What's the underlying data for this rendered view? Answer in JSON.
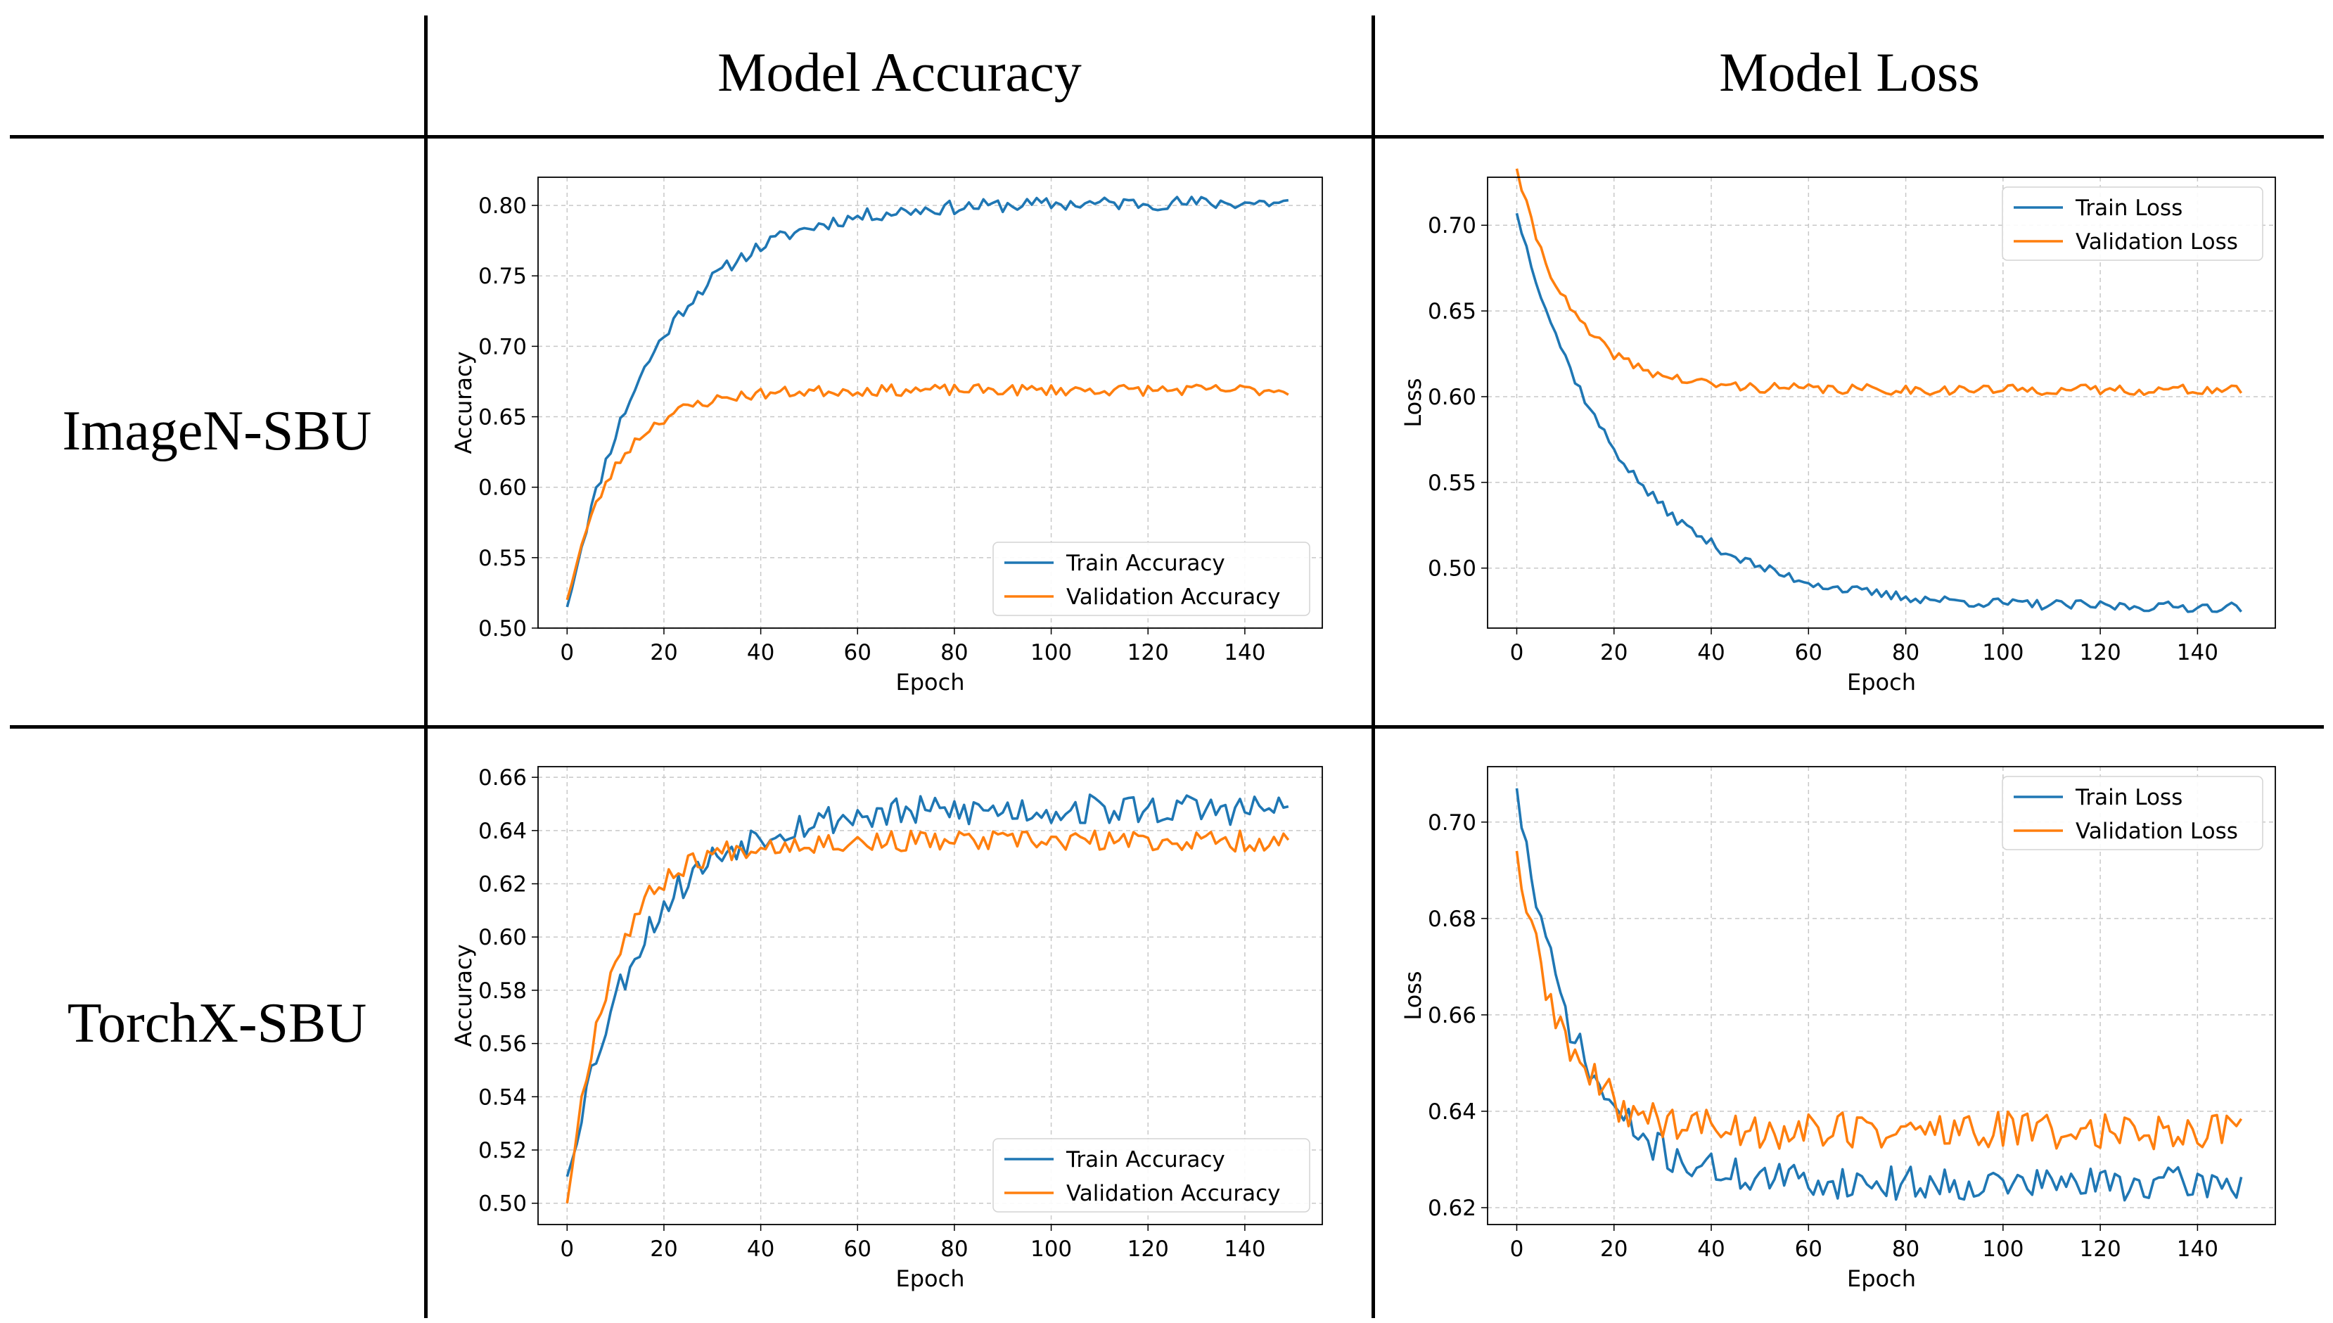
{
  "table": {
    "col_titles": [
      "Model Accuracy",
      "Model Loss"
    ],
    "row_titles": [
      "ImageN-SBU",
      "TorchX-SBU"
    ]
  },
  "colors": {
    "train": "#1f77b4",
    "validation": "#ff7f0e",
    "grid": "#c8c8c8"
  },
  "chart_data": [
    {
      "id": "imagen-accuracy",
      "type": "line",
      "xlabel": "Epoch",
      "ylabel": "Accuracy",
      "xlim": [
        -6,
        156
      ],
      "ylim": [
        0.5,
        0.82
      ],
      "xticks": [
        0,
        20,
        40,
        60,
        80,
        100,
        120,
        140
      ],
      "yticks": [
        0.5,
        0.55,
        0.6,
        0.65,
        0.7,
        0.75,
        0.8
      ],
      "ytick_decimals": 2,
      "legend_loc": "lower-right",
      "series": [
        {
          "name": "Train Accuracy",
          "color": "#1f77b4",
          "curve": "rise",
          "start": 0.515,
          "end": 0.802,
          "tau": 18,
          "noise": 0.005,
          "seed": 11
        },
        {
          "name": "Validation Accuracy",
          "color": "#ff7f0e",
          "curve": "rise",
          "start": 0.52,
          "end": 0.669,
          "tau": 10,
          "noise": 0.004,
          "seed": 23
        }
      ]
    },
    {
      "id": "imagen-loss",
      "type": "line",
      "xlabel": "Epoch",
      "ylabel": "Loss",
      "xlim": [
        -6,
        156
      ],
      "ylim": [
        0.465,
        0.728
      ],
      "xticks": [
        0,
        20,
        40,
        60,
        80,
        100,
        120,
        140
      ],
      "yticks": [
        0.5,
        0.55,
        0.6,
        0.65,
        0.7
      ],
      "ytick_decimals": 2,
      "legend_loc": "upper-right",
      "series": [
        {
          "name": "Train Loss",
          "color": "#1f77b4",
          "curve": "decay",
          "start": 0.707,
          "end": 0.477,
          "tau": 22,
          "noise": 0.003,
          "seed": 37
        },
        {
          "name": "Validation Loss",
          "color": "#ff7f0e",
          "curve": "decay",
          "start": 0.733,
          "end": 0.604,
          "tau": 11,
          "noise": 0.003,
          "seed": 41
        }
      ]
    },
    {
      "id": "torchx-accuracy",
      "type": "line",
      "xlabel": "Epoch",
      "ylabel": "Accuracy",
      "xlim": [
        -6,
        156
      ],
      "ylim": [
        0.492,
        0.664
      ],
      "xticks": [
        0,
        20,
        40,
        60,
        80,
        100,
        120,
        140
      ],
      "yticks": [
        0.5,
        0.52,
        0.54,
        0.56,
        0.58,
        0.6,
        0.62,
        0.64,
        0.66
      ],
      "ytick_decimals": 2,
      "legend_loc": "lower-right",
      "series": [
        {
          "name": "Train Accuracy",
          "color": "#1f77b4",
          "curve": "rise",
          "start": 0.51,
          "end": 0.648,
          "tau": 15,
          "noise": 0.006,
          "seed": 53
        },
        {
          "name": "Validation Accuracy",
          "color": "#ff7f0e",
          "curve": "rise",
          "start": 0.5,
          "end": 0.636,
          "tau": 9,
          "noise": 0.004,
          "seed": 67
        }
      ]
    },
    {
      "id": "torchx-loss",
      "type": "line",
      "xlabel": "Epoch",
      "ylabel": "Loss",
      "xlim": [
        -6,
        156
      ],
      "ylim": [
        0.6165,
        0.7115
      ],
      "xticks": [
        0,
        20,
        40,
        60,
        80,
        100,
        120,
        140
      ],
      "yticks": [
        0.62,
        0.64,
        0.66,
        0.68,
        0.7
      ],
      "ytick_decimals": 2,
      "legend_loc": "upper-right",
      "series": [
        {
          "name": "Train Loss",
          "color": "#1f77b4",
          "curve": "decay",
          "start": 0.707,
          "end": 0.625,
          "tau": 12,
          "noise": 0.0035,
          "seed": 71
        },
        {
          "name": "Validation Loss",
          "color": "#ff7f0e",
          "curve": "decay",
          "start": 0.694,
          "end": 0.636,
          "tau": 9,
          "noise": 0.004,
          "seed": 89
        }
      ]
    }
  ]
}
